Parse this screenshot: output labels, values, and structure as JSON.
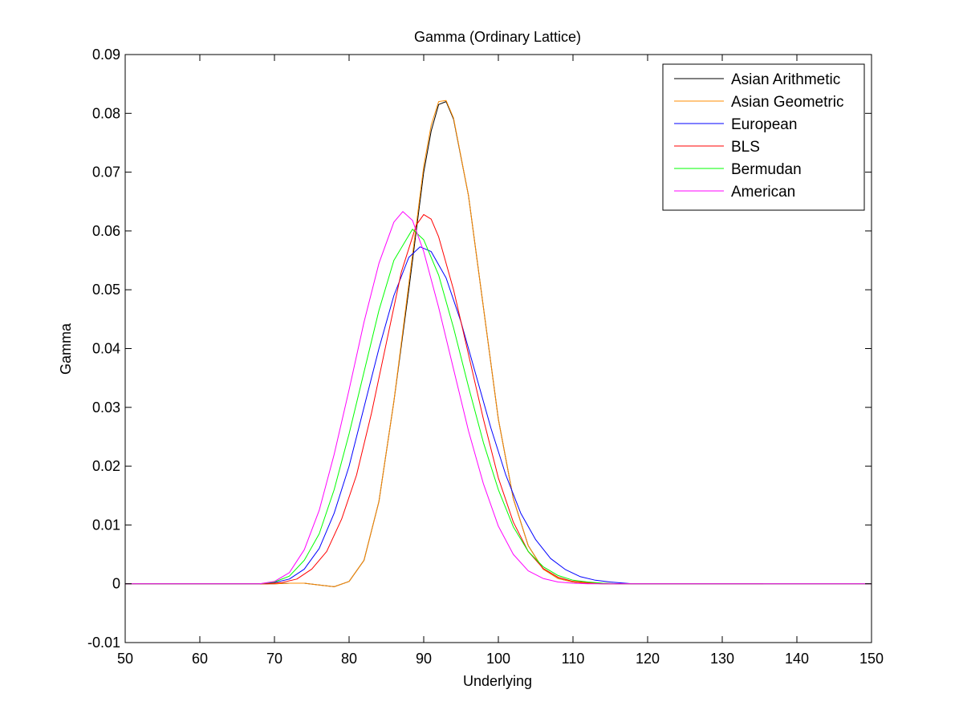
{
  "chart_data": {
    "type": "line",
    "title": "Gamma (Ordinary Lattice)",
    "xlabel": "Underlying",
    "ylabel": "Gamma",
    "xlim": [
      50,
      150
    ],
    "ylim": [
      -0.01,
      0.09
    ],
    "xticks": [
      50,
      60,
      70,
      80,
      90,
      100,
      110,
      120,
      130,
      140,
      150
    ],
    "xtick_labels": [
      "50",
      "60",
      "70",
      "80",
      "90",
      "100",
      "110",
      "120",
      "130",
      "140",
      "150"
    ],
    "yticks": [
      -0.01,
      0,
      0.01,
      0.02,
      0.03,
      0.04,
      0.05,
      0.06,
      0.07,
      0.08,
      0.09
    ],
    "ytick_labels": [
      "-0.01",
      "0",
      "0.01",
      "0.02",
      "0.03",
      "0.04",
      "0.05",
      "0.06",
      "0.07",
      "0.08",
      "0.09"
    ],
    "grid": false,
    "legend_position": "top-right",
    "series": [
      {
        "name": "Asian Arithmetic",
        "color": "#000000",
        "x": [
          50,
          70,
          72,
          74,
          76,
          78,
          80,
          82,
          84,
          86,
          88,
          90,
          91,
          92,
          93,
          94,
          96,
          98,
          100,
          102,
          104,
          106,
          108,
          110,
          112,
          114,
          116,
          120,
          135.5
        ],
        "y": [
          0,
          0,
          0.0001,
          0.0001,
          -0.0002,
          -0.0005,
          0.0004,
          0.004,
          0.014,
          0.031,
          0.05,
          0.07,
          0.077,
          0.0815,
          0.082,
          0.079,
          0.066,
          0.047,
          0.028,
          0.0145,
          0.0065,
          0.0025,
          0.0009,
          0.0003,
          0.0001,
          0,
          0,
          0,
          0
        ]
      },
      {
        "name": "Asian Geometric",
        "color": "#ff8c00",
        "x": [
          50,
          70,
          72,
          74,
          76,
          78,
          80,
          82,
          84,
          86,
          88,
          90,
          91,
          92,
          93,
          94,
          96,
          98,
          100,
          102,
          104,
          106,
          108,
          110,
          112,
          114,
          116,
          120,
          135.5
        ],
        "y": [
          0,
          0,
          0.0001,
          0.0001,
          -0.0002,
          -0.0005,
          0.0004,
          0.004,
          0.014,
          0.031,
          0.051,
          0.071,
          0.078,
          0.082,
          0.0822,
          0.0792,
          0.066,
          0.047,
          0.028,
          0.0145,
          0.0065,
          0.0025,
          0.0009,
          0.0003,
          0.0001,
          0,
          0,
          0,
          0
        ]
      },
      {
        "name": "European",
        "color": "#0000ff",
        "x": [
          50,
          68,
          70,
          72,
          74,
          76,
          78,
          80,
          82,
          84,
          86,
          88,
          89.5,
          91,
          93,
          95,
          97,
          99,
          101,
          103,
          105,
          107,
          109,
          111,
          113,
          115,
          118,
          150
        ],
        "y": [
          0,
          0,
          0.0002,
          0.0008,
          0.0025,
          0.006,
          0.012,
          0.02,
          0.03,
          0.04,
          0.049,
          0.0555,
          0.0573,
          0.0565,
          0.052,
          0.0445,
          0.0355,
          0.0265,
          0.0185,
          0.012,
          0.0075,
          0.0043,
          0.0024,
          0.0012,
          0.0006,
          0.0003,
          0,
          0
        ]
      },
      {
        "name": "BLS",
        "color": "#ff0000",
        "x": [
          50,
          69,
          71,
          73,
          75,
          77,
          79,
          81,
          83,
          85,
          87,
          89,
          90,
          91,
          92,
          94,
          96,
          98,
          100,
          102,
          104,
          106,
          108,
          110,
          112,
          114,
          116,
          150
        ],
        "y": [
          0,
          0,
          0.0002,
          0.0008,
          0.0025,
          0.0055,
          0.011,
          0.0185,
          0.029,
          0.041,
          0.053,
          0.061,
          0.0628,
          0.062,
          0.059,
          0.05,
          0.039,
          0.028,
          0.018,
          0.0105,
          0.0055,
          0.0026,
          0.0011,
          0.0004,
          0.0002,
          0.0001,
          0,
          0
        ]
      },
      {
        "name": "Bermudan",
        "color": "#00ff00",
        "x": [
          50,
          68,
          70,
          72,
          74,
          76,
          78,
          80,
          82,
          84,
          86,
          88.5,
          90,
          92,
          94,
          96,
          98,
          100,
          102,
          104,
          106,
          108,
          110,
          112,
          114,
          116,
          150
        ],
        "y": [
          0,
          0,
          0.0003,
          0.0013,
          0.004,
          0.0085,
          0.016,
          0.0255,
          0.036,
          0.0465,
          0.055,
          0.0603,
          0.0585,
          0.0525,
          0.0435,
          0.0335,
          0.024,
          0.016,
          0.0097,
          0.0055,
          0.0029,
          0.0014,
          0.0006,
          0.0003,
          0.0001,
          0,
          0
        ]
      },
      {
        "name": "American",
        "color": "#ff00ff",
        "x": [
          50,
          68,
          70,
          72,
          74,
          76,
          78,
          80,
          82,
          84,
          86,
          87.2,
          88.5,
          90,
          92,
          94,
          96,
          98,
          100,
          102,
          104,
          106,
          108,
          110,
          112,
          150
        ],
        "y": [
          0,
          0,
          0.0004,
          0.0019,
          0.0058,
          0.0125,
          0.022,
          0.033,
          0.0445,
          0.0545,
          0.0615,
          0.0633,
          0.0618,
          0.0565,
          0.047,
          0.0365,
          0.026,
          0.017,
          0.0098,
          0.005,
          0.0022,
          0.0009,
          0.0003,
          0.0001,
          0,
          0
        ]
      }
    ]
  }
}
